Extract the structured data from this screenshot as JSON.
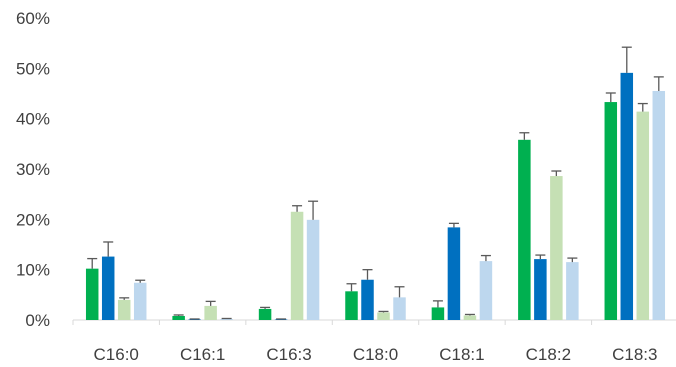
{
  "chart_data": {
    "type": "bar",
    "title": "",
    "xlabel": "",
    "ylabel": "",
    "categories": [
      "C16:0",
      "C16:1",
      "C16:3",
      "C18:0",
      "C18:1",
      "C18:2",
      "C18:3"
    ],
    "y_tick_labels": [
      "0%",
      "10%",
      "20%",
      "30%",
      "40%",
      "50%",
      "60%"
    ],
    "ylim": [
      0,
      60
    ],
    "grid": false,
    "legend": "none",
    "series": [
      {
        "color": "#00B050",
        "values": [
          10.2,
          0.8,
          2.2,
          5.7,
          2.5,
          35.8,
          43.3
        ],
        "errors": [
          2.0,
          0.2,
          0.3,
          1.5,
          1.3,
          1.4,
          1.8
        ]
      },
      {
        "color": "#0070C0",
        "values": [
          12.6,
          0.1,
          0.1,
          8.0,
          18.4,
          12.1,
          49.1
        ],
        "errors": [
          2.9,
          0.1,
          0.1,
          2.0,
          0.8,
          0.8,
          5.1
        ]
      },
      {
        "color": "#C5E0B4",
        "values": [
          4.0,
          2.8,
          21.5,
          1.5,
          0.9,
          28.6,
          41.4
        ],
        "errors": [
          0.4,
          0.9,
          1.2,
          0.2,
          0.2,
          1.0,
          1.6
        ]
      },
      {
        "color": "#BDD7EE",
        "values": [
          7.4,
          0.2,
          19.9,
          4.5,
          11.7,
          11.5,
          45.5
        ],
        "errors": [
          0.5,
          0.1,
          3.7,
          2.1,
          1.1,
          0.8,
          2.8
        ]
      }
    ]
  }
}
